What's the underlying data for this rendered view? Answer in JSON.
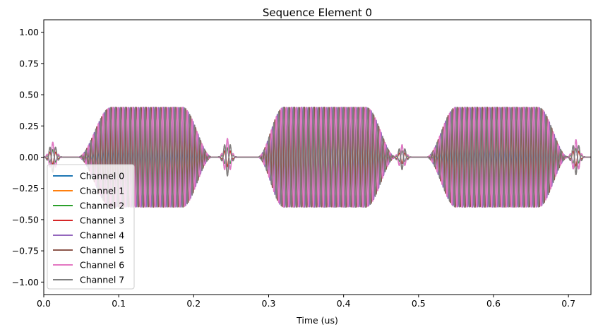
{
  "chart_data": {
    "type": "line",
    "title": "Sequence Element 0",
    "xlabel": "Time (us)",
    "ylabel": "",
    "xlim": [
      0.0,
      0.73
    ],
    "ylim": [
      -1.1,
      1.1
    ],
    "x_ticks": [
      0.0,
      0.1,
      0.2,
      0.3,
      0.4,
      0.5,
      0.6,
      0.7
    ],
    "x_tick_labels": [
      "0.0",
      "0.1",
      "0.2",
      "0.3",
      "0.4",
      "0.5",
      "0.6",
      "0.7"
    ],
    "y_ticks": [
      1.0,
      0.75,
      0.5,
      0.25,
      0.0,
      -0.25,
      -0.5,
      -0.75,
      -1.0
    ],
    "y_tick_labels": [
      "1.00",
      "0.75",
      "0.50",
      "0.25",
      "0.00",
      "−0.25",
      "−0.50",
      "−0.75",
      "−1.00"
    ],
    "grid": false,
    "legend_position": "lower-left",
    "series": [
      {
        "name": "Channel 0",
        "color": "#1f77b4",
        "amplitude": 0.2,
        "phase": 0.0
      },
      {
        "name": "Channel 1",
        "color": "#ff7f0e",
        "amplitude": 0.2,
        "phase": 0.4
      },
      {
        "name": "Channel 2",
        "color": "#2ca02c",
        "amplitude": 0.2,
        "phase": 0.8
      },
      {
        "name": "Channel 3",
        "color": "#d62728",
        "amplitude": 0.2,
        "phase": 1.2
      },
      {
        "name": "Channel 4",
        "color": "#9467bd",
        "amplitude": 0.4,
        "phase": 0.3
      },
      {
        "name": "Channel 5",
        "color": "#8c564b",
        "amplitude": 0.4,
        "phase": 3.4
      },
      {
        "name": "Channel 6",
        "color": "#e377c2",
        "amplitude": 0.4,
        "phase": 1.6
      },
      {
        "name": "Channel 7",
        "color": "#7f7f7f",
        "amplitude": 0.4,
        "phase": 4.7
      }
    ],
    "signal": {
      "carrier_period_us": 0.0066,
      "pulses": [
        {
          "start": 0.045,
          "flat_start": 0.09,
          "flat_end": 0.185,
          "end": 0.225
        },
        {
          "start": 0.285,
          "flat_start": 0.32,
          "flat_end": 0.43,
          "end": 0.47
        },
        {
          "start": 0.51,
          "flat_start": 0.55,
          "flat_end": 0.66,
          "end": 0.7
        }
      ],
      "small_bursts": [
        {
          "center": 0.012,
          "amplitude": 0.12
        },
        {
          "center": 0.245,
          "amplitude": 0.15
        },
        {
          "center": 0.478,
          "amplitude": 0.1
        },
        {
          "center": 0.71,
          "amplitude": 0.14
        }
      ]
    }
  }
}
